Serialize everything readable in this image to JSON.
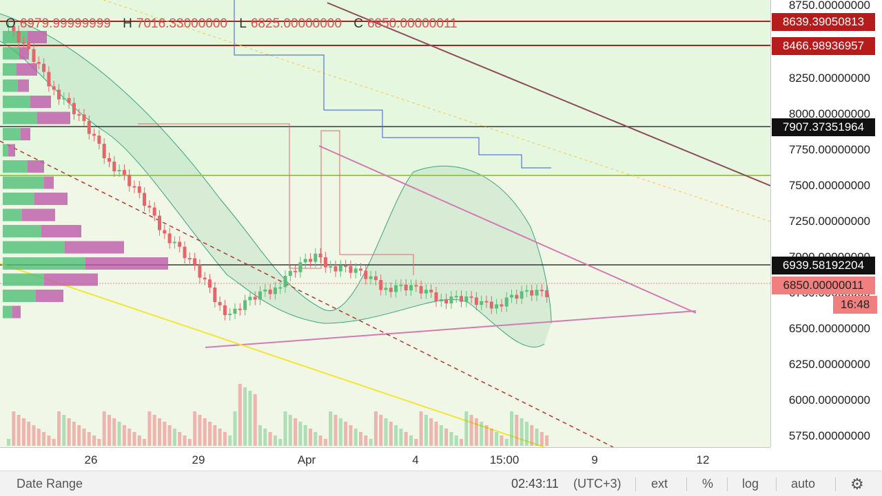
{
  "legend": {
    "open_key": "O",
    "open": "6979.99999999",
    "high_key": "H",
    "high": "7016.33000000",
    "low_key": "L",
    "low": "6825.00000000",
    "close_key": "C",
    "close": "6850.00000011"
  },
  "price_axis": {
    "ticks": [
      "8750.00000000",
      "8250.00000000",
      "8000.00000000",
      "7750.00000000",
      "7500.00000000",
      "7250.00000000",
      "7000.00000000",
      "6750.00000000",
      "6500.00000000",
      "6250.00000000",
      "6000.00000000",
      "5750.00000000"
    ],
    "labels": [
      {
        "text": "8639.39050813",
        "color": "#b71c1c"
      },
      {
        "text": "8466.98936957",
        "color": "#b71c1c"
      },
      {
        "text": "7907.37351964",
        "color": "#111111"
      },
      {
        "text": "6939.58192204",
        "color": "#111111"
      },
      {
        "text": "6850.00000011",
        "color": "#f08080"
      }
    ],
    "timer": "16:48"
  },
  "time_axis": {
    "ticks": [
      "26",
      "29",
      "Apr",
      "4",
      "15:00",
      "9",
      "12"
    ]
  },
  "bottom_bar": {
    "date_range": "Date Range",
    "clock": "02:43:11",
    "timezone": "(UTC+3)",
    "ext": "ext",
    "percent": "%",
    "log": "log",
    "auto": "auto",
    "settings_icon": "gear-icon"
  },
  "colors": {
    "up": "#5bbf7a",
    "down": "#e8646b",
    "zone_upper": "#e6f7e0",
    "zone_lower": "#f0f7e6",
    "trend_pink": "#d27ab4",
    "trend_brown": "#8e4a5a",
    "yellow_line": "#f2e632",
    "hline_green": "#9ccc3a"
  }
}
